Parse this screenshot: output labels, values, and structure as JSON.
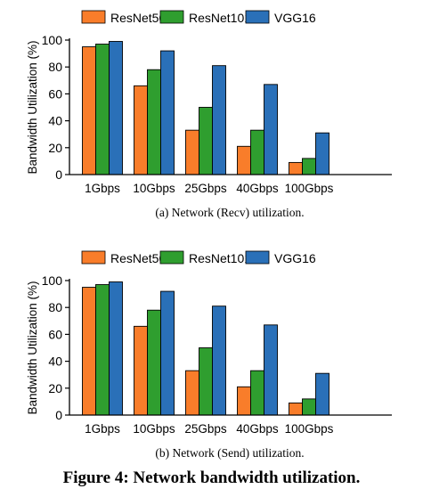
{
  "figure_caption": "Figure 4: Network bandwidth utilization.",
  "legend": {
    "items": [
      {
        "name": "ResNet50",
        "color": "#f97d2a"
      },
      {
        "name": "ResNet101",
        "color": "#2f9e2f"
      },
      {
        "name": "VGG16",
        "color": "#2a70b8"
      }
    ]
  },
  "chart_data": [
    {
      "type": "bar",
      "caption": "(a) Network (Recv) utilization.",
      "ylabel": "Bandwidth Utilization (%)",
      "ylim": [
        0,
        100
      ],
      "yticks": [
        "0",
        "20",
        "40",
        "60",
        "80",
        "100"
      ],
      "categories": [
        "1Gbps",
        "10Gbps",
        "25Gbps",
        "40Gbps",
        "100Gbps"
      ],
      "series": [
        {
          "name": "ResNet50",
          "values": [
            95,
            66,
            33,
            21,
            9
          ]
        },
        {
          "name": "ResNet101",
          "values": [
            97,
            78,
            50,
            33,
            12
          ]
        },
        {
          "name": "VGG16",
          "values": [
            99,
            92,
            81,
            67,
            31
          ]
        }
      ],
      "grid": false,
      "legend": "top"
    },
    {
      "type": "bar",
      "caption": "(b) Network (Send) utilization.",
      "ylabel": "Bandwidth Utilization (%)",
      "ylim": [
        0,
        100
      ],
      "yticks": [
        "0",
        "20",
        "40",
        "60",
        "80",
        "100"
      ],
      "categories": [
        "1Gbps",
        "10Gbps",
        "25Gbps",
        "40Gbps",
        "100Gbps"
      ],
      "series": [
        {
          "name": "ResNet50",
          "values": [
            95,
            66,
            33,
            21,
            9
          ]
        },
        {
          "name": "ResNet101",
          "values": [
            97,
            78,
            50,
            33,
            12
          ]
        },
        {
          "name": "VGG16",
          "values": [
            99,
            92,
            81,
            67,
            31
          ]
        }
      ],
      "grid": false,
      "legend": "top"
    }
  ]
}
